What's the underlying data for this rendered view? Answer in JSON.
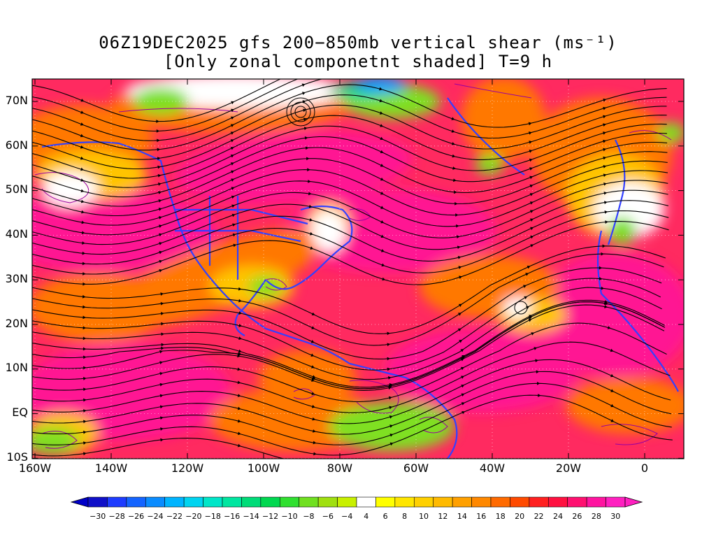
{
  "title": {
    "line1": "06Z19DEC2025 gfs 200−850mb vertical shear (ms⁻¹)",
    "line2": "[Only zonal componetnt shaded] T=9 h"
  },
  "map": {
    "region": "North Atlantic / North America / Eastern Pacific",
    "lat_labels": [
      "70N",
      "60N",
      "50N",
      "40N",
      "30N",
      "20N",
      "10N",
      "EQ",
      "10S"
    ],
    "lon_labels": [
      "160W",
      "140W",
      "120W",
      "100W",
      "80W",
      "60W",
      "40W",
      "20W",
      "0"
    ],
    "field": "200-850mb vertical shear streamlines, zonal component shaded",
    "colors": {
      "strong_positive": "#ff1493",
      "positive_high": "#ff2a60",
      "positive_mid": "#ff7800",
      "positive_low": "#ffc400",
      "weak": "#ffffff",
      "negative_low": "#7fe020",
      "negative_mid": "#00d890",
      "negative_high": "#00a0ff",
      "coastline": "#3240ff",
      "contour": "#9900a0",
      "streamline": "#000000"
    }
  },
  "colorbar": {
    "labels": [
      "−30",
      "−28",
      "−26",
      "−24",
      "−22",
      "−20",
      "−18",
      "−16",
      "−14",
      "−12",
      "−10",
      "−8",
      "−6",
      "−4",
      "4",
      "6",
      "8",
      "10",
      "12",
      "14",
      "16",
      "18",
      "20",
      "22",
      "24",
      "26",
      "28",
      "30"
    ],
    "colors": [
      "#1010c8",
      "#1e3cff",
      "#1464ff",
      "#0a8cff",
      "#00b4ff",
      "#00d4f0",
      "#00e6c8",
      "#00e6a0",
      "#00dc78",
      "#00d850",
      "#30e030",
      "#70e020",
      "#a0e010",
      "#c8f000",
      "#ffffff",
      "#ffff00",
      "#ffe600",
      "#ffd000",
      "#ffba00",
      "#ffa000",
      "#ff8800",
      "#ff6a00",
      "#ff4a00",
      "#ff2020",
      "#ff1040",
      "#ff1070",
      "#ff14a0",
      "#ff20c0"
    ]
  }
}
